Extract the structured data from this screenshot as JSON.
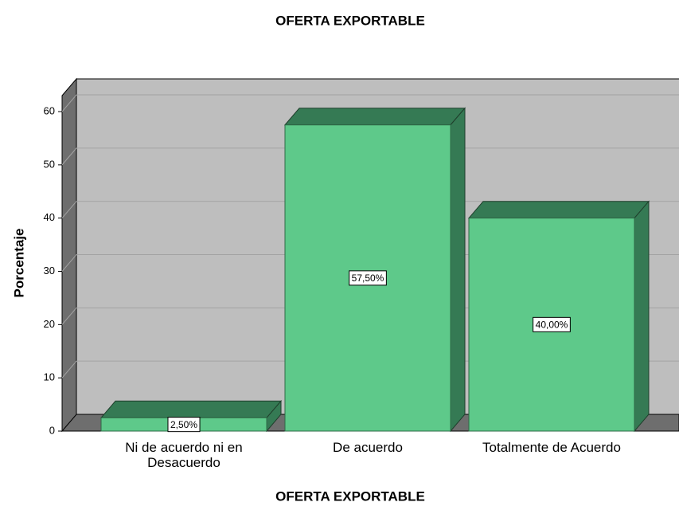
{
  "chart_data": {
    "type": "bar3d",
    "title": "OFERTA EXPORTABLE",
    "xlabel": "OFERTA EXPORTABLE",
    "ylabel": "Porcentaje",
    "categories": [
      "Ni de acuerdo ni en Desacuerdo",
      "De acuerdo",
      "Totalmente de Acuerdo"
    ],
    "values": [
      2.5,
      57.5,
      40
    ],
    "value_labels": [
      "2,50%",
      "57,50%",
      "40,00%"
    ],
    "color": "#5ec98a",
    "ylim": [
      0,
      63
    ],
    "yticks": [
      0,
      10,
      20,
      30,
      40,
      50,
      60
    ],
    "grid": true
  }
}
